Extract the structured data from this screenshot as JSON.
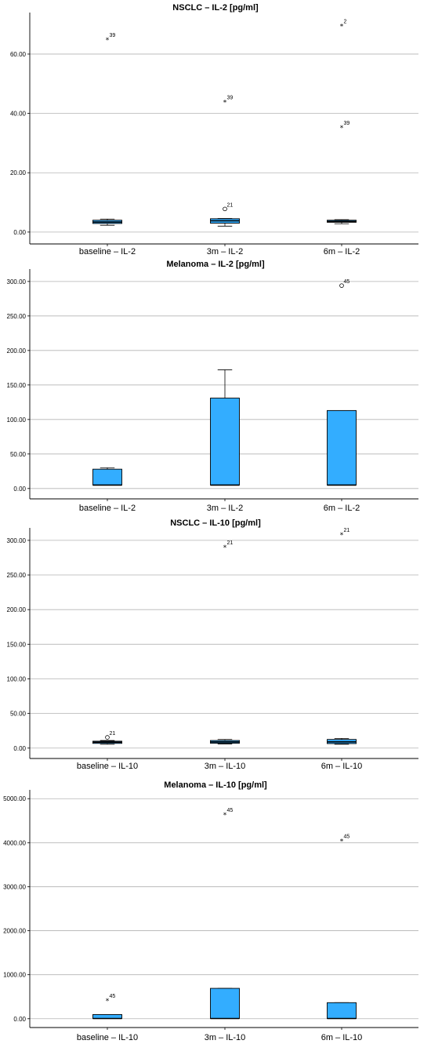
{
  "colors": {
    "box_fill": "#33adff",
    "stroke": "#000000",
    "grid": "#b3b3b3"
  },
  "chart_data": [
    {
      "type": "boxplot",
      "title": "NSCLC – IL-2 [pg/ml]",
      "ylim": [
        -4,
        74
      ],
      "yticks": [
        "0.00",
        "20.00",
        "40.00",
        "60.00"
      ],
      "ytick_values": [
        0,
        20,
        40,
        60
      ],
      "grid": true,
      "categories": [
        "baseline – IL-2",
        "3m – IL-2",
        "6m – IL-2"
      ],
      "boxes": [
        {
          "whisker_low": 2.3,
          "q1": 2.9,
          "median": 3.4,
          "q3": 4.0,
          "whisker_high": 4.4
        },
        {
          "whisker_low": 2.0,
          "q1": 3.0,
          "median": 3.8,
          "q3": 4.5,
          "whisker_high": 4.6
        },
        {
          "whisker_low": 2.8,
          "q1": 3.3,
          "median": 3.6,
          "q3": 4.0,
          "whisker_high": 4.2
        }
      ],
      "outliers": [
        {
          "category": 0,
          "value": 65.0,
          "symbol": "*",
          "label": "39"
        },
        {
          "category": 1,
          "value": 44.0,
          "symbol": "*",
          "label": "39"
        },
        {
          "category": 1,
          "value": 7.8,
          "symbol": "o",
          "label": "21"
        },
        {
          "category": 2,
          "value": 69.7,
          "symbol": "*",
          "label": "2"
        },
        {
          "category": 2,
          "value": 35.4,
          "symbol": "*",
          "label": "39"
        }
      ]
    },
    {
      "type": "boxplot",
      "title": "Melanoma – IL-2 [pg/ml]",
      "ylim": [
        -15,
        318
      ],
      "yticks": [
        "0.00",
        "50.00",
        "100.00",
        "150.00",
        "200.00",
        "250.00",
        "300.00"
      ],
      "ytick_values": [
        0,
        50,
        100,
        150,
        200,
        250,
        300
      ],
      "grid": true,
      "categories": [
        "baseline – IL-2",
        "3m – IL-2",
        "6m – IL-2"
      ],
      "boxes": [
        {
          "whisker_low": 5,
          "q1": 5,
          "median": 5,
          "q3": 28,
          "whisker_high": 30
        },
        {
          "whisker_low": 5,
          "q1": 5,
          "median": 5,
          "q3": 131,
          "whisker_high": 172
        },
        {
          "whisker_low": 5,
          "q1": 5,
          "median": 5,
          "q3": 113,
          "whisker_high": 113
        }
      ],
      "outliers": [
        {
          "category": 2,
          "value": 294,
          "symbol": "o",
          "label": "45"
        }
      ]
    },
    {
      "type": "boxplot",
      "title": "NSCLC – IL-10 [pg/ml]",
      "ylim": [
        -15,
        318
      ],
      "yticks": [
        "0.00",
        "50.00",
        "100.00",
        "150.00",
        "200.00",
        "250.00",
        "300.00"
      ],
      "ytick_values": [
        0,
        50,
        100,
        150,
        200,
        250,
        300
      ],
      "grid": true,
      "categories": [
        "baseline – IL-10",
        "3m – IL-10",
        "6m – IL-10"
      ],
      "boxes": [
        {
          "whisker_low": 5.5,
          "q1": 6.8,
          "median": 8.5,
          "q3": 10.0,
          "whisker_high": 11.0
        },
        {
          "whisker_low": 6.0,
          "q1": 7.0,
          "median": 8.8,
          "q3": 11.0,
          "whisker_high": 12.5
        },
        {
          "whisker_low": 5.5,
          "q1": 6.5,
          "median": 9.0,
          "q3": 12.5,
          "whisker_high": 14.0
        }
      ],
      "outliers": [
        {
          "category": 0,
          "value": 15.5,
          "symbol": "o",
          "label": "21"
        },
        {
          "category": 1,
          "value": 291,
          "symbol": "*",
          "label": "21"
        },
        {
          "category": 2,
          "value": 309,
          "symbol": "*",
          "label": "21"
        }
      ]
    },
    {
      "type": "boxplot",
      "title": "Melanoma – IL-10 [pg/ml]",
      "ylim": [
        -200,
        5200
      ],
      "yticks": [
        "0.00",
        "1000.00",
        "2000.00",
        "3000.00",
        "4000.00",
        "5000.00"
      ],
      "ytick_values": [
        0,
        1000,
        2000,
        3000,
        4000,
        5000
      ],
      "grid": true,
      "categories": [
        "baseline – IL-10",
        "3m – IL-10",
        "6m – IL-10"
      ],
      "boxes": [
        {
          "whisker_low": 5,
          "q1": 5,
          "median": 5,
          "q3": 95,
          "whisker_high": 95
        },
        {
          "whisker_low": 5,
          "q1": 5,
          "median": 5,
          "q3": 690,
          "whisker_high": 690
        },
        {
          "whisker_low": 5,
          "q1": 5,
          "median": 5,
          "q3": 365,
          "whisker_high": 365
        }
      ],
      "outliers": [
        {
          "category": 0,
          "value": 420,
          "symbol": "*",
          "label": "45"
        },
        {
          "category": 1,
          "value": 4650,
          "symbol": "*",
          "label": "45"
        },
        {
          "category": 2,
          "value": 4050,
          "symbol": "*",
          "label": "45"
        }
      ]
    }
  ]
}
